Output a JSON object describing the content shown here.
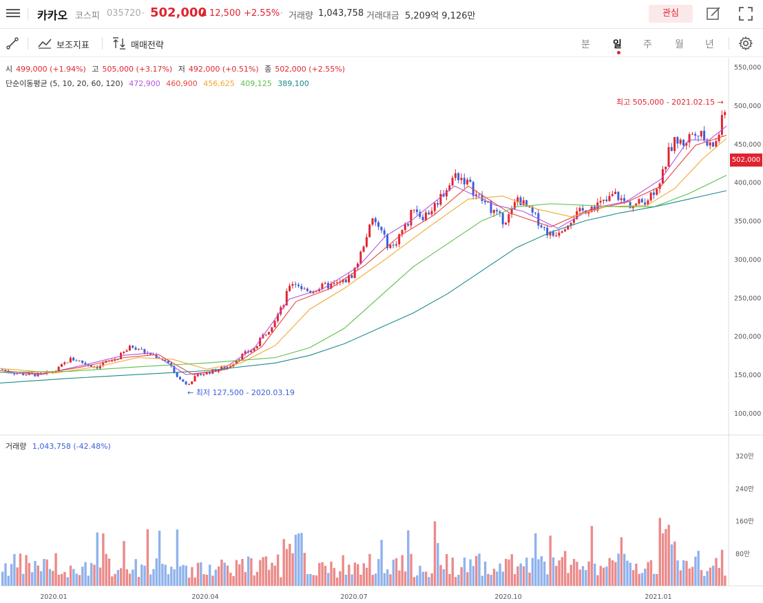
{
  "header": {
    "name": "카카오",
    "market": "코스피",
    "code": "035720",
    "sep": "·",
    "price": "502,000",
    "change": "12,500",
    "change_pct": "+2.55%",
    "volume_label": "거래량",
    "volume": "1,043,758",
    "amount_label": "거래대금",
    "amount": "5,209억 9,126만",
    "favorite": "관심"
  },
  "toolbar": {
    "indicator": "보조지표",
    "strategy": "매매전략",
    "periods": [
      "분",
      "일",
      "주",
      "월",
      "년"
    ],
    "active_period": "일"
  },
  "ohlc": {
    "open_label": "시",
    "open": "499,000 (+1.94%)",
    "high_label": "고",
    "high": "505,000 (+3.17%)",
    "low_label": "저",
    "low": "492,000 (+0.51%)",
    "close_label": "종",
    "close": "502,000 (+2.55%)"
  },
  "ma": {
    "label": "단순이동평균 (5, 10, 20, 60, 120)",
    "values": [
      "472,900",
      "460,900",
      "456,625",
      "409,125",
      "389,100"
    ],
    "colors": [
      "#b055e0",
      "#e8433a",
      "#f0a830",
      "#5cbf4a",
      "#1a8a8a"
    ]
  },
  "annotations": {
    "high": "최고 505,000 - 2021.02.15",
    "low": "최저 127,500 - 2020.03.19",
    "last_price": "502,000"
  },
  "volume_panel": {
    "label": "거래량",
    "value": "1,043,758 (-42.48%)",
    "ticks": [
      "320만",
      "240만",
      "160만",
      "80만"
    ]
  },
  "chart_data": {
    "type": "candlestick",
    "price_ticks": [
      "550,000",
      "500,000",
      "450,000",
      "400,000",
      "350,000",
      "300,000",
      "250,000",
      "200,000",
      "150,000",
      "100,000"
    ],
    "x_ticks": [
      "2020.01",
      "2020.04",
      "2020.07",
      "2020.10",
      "2021.01"
    ],
    "ylim": [
      80000,
      560000
    ],
    "close_path": [
      [
        0,
        157000
      ],
      [
        10,
        154000
      ],
      [
        20,
        152000
      ],
      [
        30,
        151000
      ],
      [
        40,
        150000
      ],
      [
        50,
        150000
      ],
      [
        60,
        149000
      ],
      [
        70,
        152000
      ],
      [
        80,
        155000
      ],
      [
        90,
        163000
      ],
      [
        100,
        170000
      ],
      [
        110,
        169000
      ],
      [
        120,
        165000
      ],
      [
        130,
        162000
      ],
      [
        140,
        160000
      ],
      [
        150,
        165000
      ],
      [
        160,
        168000
      ],
      [
        170,
        172000
      ],
      [
        180,
        180000
      ],
      [
        190,
        187000
      ],
      [
        200,
        184000
      ],
      [
        210,
        178000
      ],
      [
        220,
        176000
      ],
      [
        230,
        172000
      ],
      [
        240,
        168000
      ],
      [
        250,
        155000
      ],
      [
        260,
        143000
      ],
      [
        270,
        138000
      ],
      [
        280,
        145000
      ],
      [
        290,
        150000
      ],
      [
        300,
        153000
      ],
      [
        310,
        155000
      ],
      [
        320,
        158000
      ],
      [
        330,
        160000
      ],
      [
        340,
        168000
      ],
      [
        350,
        175000
      ],
      [
        360,
        180000
      ],
      [
        370,
        185000
      ],
      [
        380,
        200000
      ],
      [
        390,
        210000
      ],
      [
        400,
        225000
      ],
      [
        410,
        240000
      ],
      [
        420,
        270000
      ],
      [
        430,
        268000
      ],
      [
        440,
        260000
      ],
      [
        450,
        258000
      ],
      [
        460,
        262000
      ],
      [
        470,
        265000
      ],
      [
        480,
        266000
      ],
      [
        490,
        268000
      ],
      [
        500,
        272000
      ],
      [
        510,
        280000
      ],
      [
        520,
        300000
      ],
      [
        530,
        330000
      ],
      [
        540,
        350000
      ],
      [
        550,
        340000
      ],
      [
        560,
        320000
      ],
      [
        570,
        316000
      ],
      [
        580,
        335000
      ],
      [
        590,
        345000
      ],
      [
        600,
        370000
      ],
      [
        610,
        355000
      ],
      [
        620,
        360000
      ],
      [
        630,
        370000
      ],
      [
        640,
        384000
      ],
      [
        650,
        395000
      ],
      [
        660,
        410000
      ],
      [
        670,
        405000
      ],
      [
        680,
        397000
      ],
      [
        690,
        383000
      ],
      [
        700,
        375000
      ],
      [
        710,
        368000
      ],
      [
        720,
        357000
      ],
      [
        730,
        350000
      ],
      [
        740,
        358000
      ],
      [
        750,
        380000
      ],
      [
        760,
        370000
      ],
      [
        770,
        360000
      ],
      [
        780,
        350000
      ],
      [
        790,
        338000
      ],
      [
        800,
        330000
      ],
      [
        810,
        338000
      ],
      [
        820,
        345000
      ],
      [
        830,
        355000
      ],
      [
        840,
        360000
      ],
      [
        850,
        365000
      ],
      [
        860,
        369000
      ],
      [
        870,
        372000
      ],
      [
        880,
        375000
      ],
      [
        890,
        385000
      ],
      [
        900,
        378000
      ],
      [
        910,
        372000
      ],
      [
        920,
        370000
      ],
      [
        930,
        374000
      ],
      [
        940,
        380000
      ],
      [
        950,
        392000
      ],
      [
        960,
        408000
      ],
      [
        970,
        440000
      ],
      [
        980,
        455000
      ],
      [
        990,
        450000
      ],
      [
        1000,
        460000
      ],
      [
        1010,
        470000
      ],
      [
        1020,
        455000
      ],
      [
        1030,
        445000
      ],
      [
        1040,
        455000
      ],
      [
        1050,
        490000
      ],
      [
        1055,
        502000
      ]
    ],
    "ma_series": [
      {
        "values": [
          [
            0,
            153000
          ],
          [
            60,
            150000
          ],
          [
            120,
            162000
          ],
          [
            180,
            175000
          ],
          [
            220,
            178000
          ],
          [
            270,
            150000
          ],
          [
            320,
            155000
          ],
          [
            370,
            185000
          ],
          [
            420,
            248000
          ],
          [
            470,
            262000
          ],
          [
            520,
            290000
          ],
          [
            560,
            330000
          ],
          [
            600,
            352000
          ],
          [
            660,
            395000
          ],
          [
            720,
            370000
          ],
          [
            760,
            362000
          ],
          [
            810,
            340000
          ],
          [
            860,
            366000
          ],
          [
            910,
            375000
          ],
          [
            960,
            404000
          ],
          [
            1000,
            455000
          ],
          [
            1030,
            455000
          ],
          [
            1055,
            473000
          ]
        ]
      },
      {
        "values": [
          [
            0,
            155000
          ],
          [
            60,
            151000
          ],
          [
            120,
            160000
          ],
          [
            180,
            172000
          ],
          [
            230,
            176000
          ],
          [
            280,
            150000
          ],
          [
            330,
            157000
          ],
          [
            380,
            186000
          ],
          [
            430,
            245000
          ],
          [
            480,
            262000
          ],
          [
            530,
            292000
          ],
          [
            580,
            330000
          ],
          [
            630,
            357000
          ],
          [
            680,
            395000
          ],
          [
            740,
            360000
          ],
          [
            800,
            342000
          ],
          [
            850,
            362000
          ],
          [
            910,
            374000
          ],
          [
            960,
            395000
          ],
          [
            1010,
            448000
          ],
          [
            1055,
            461000
          ]
        ]
      },
      {
        "values": [
          [
            0,
            158000
          ],
          [
            80,
            152000
          ],
          [
            140,
            160000
          ],
          [
            200,
            172000
          ],
          [
            250,
            170000
          ],
          [
            300,
            157000
          ],
          [
            350,
            165000
          ],
          [
            400,
            188000
          ],
          [
            450,
            235000
          ],
          [
            500,
            262000
          ],
          [
            560,
            300000
          ],
          [
            620,
            340000
          ],
          [
            680,
            378000
          ],
          [
            730,
            382000
          ],
          [
            780,
            365000
          ],
          [
            830,
            355000
          ],
          [
            880,
            368000
          ],
          [
            940,
            370000
          ],
          [
            980,
            392000
          ],
          [
            1020,
            430000
          ],
          [
            1055,
            457000
          ]
        ]
      },
      {
        "values": [
          [
            0,
            153000
          ],
          [
            100,
            154000
          ],
          [
            200,
            160000
          ],
          [
            300,
            165000
          ],
          [
            400,
            172000
          ],
          [
            450,
            185000
          ],
          [
            500,
            210000
          ],
          [
            550,
            250000
          ],
          [
            600,
            290000
          ],
          [
            650,
            320000
          ],
          [
            700,
            350000
          ],
          [
            750,
            368000
          ],
          [
            800,
            372000
          ],
          [
            850,
            370000
          ],
          [
            900,
            368000
          ],
          [
            950,
            368000
          ],
          [
            1000,
            385000
          ],
          [
            1055,
            409000
          ]
        ]
      },
      {
        "values": [
          [
            0,
            139000
          ],
          [
            100,
            145000
          ],
          [
            200,
            150000
          ],
          [
            300,
            155000
          ],
          [
            400,
            165000
          ],
          [
            450,
            175000
          ],
          [
            500,
            190000
          ],
          [
            550,
            210000
          ],
          [
            600,
            230000
          ],
          [
            650,
            255000
          ],
          [
            700,
            285000
          ],
          [
            750,
            315000
          ],
          [
            800,
            335000
          ],
          [
            850,
            350000
          ],
          [
            900,
            360000
          ],
          [
            950,
            368000
          ],
          [
            1000,
            378000
          ],
          [
            1055,
            389000
          ]
        ]
      }
    ]
  }
}
